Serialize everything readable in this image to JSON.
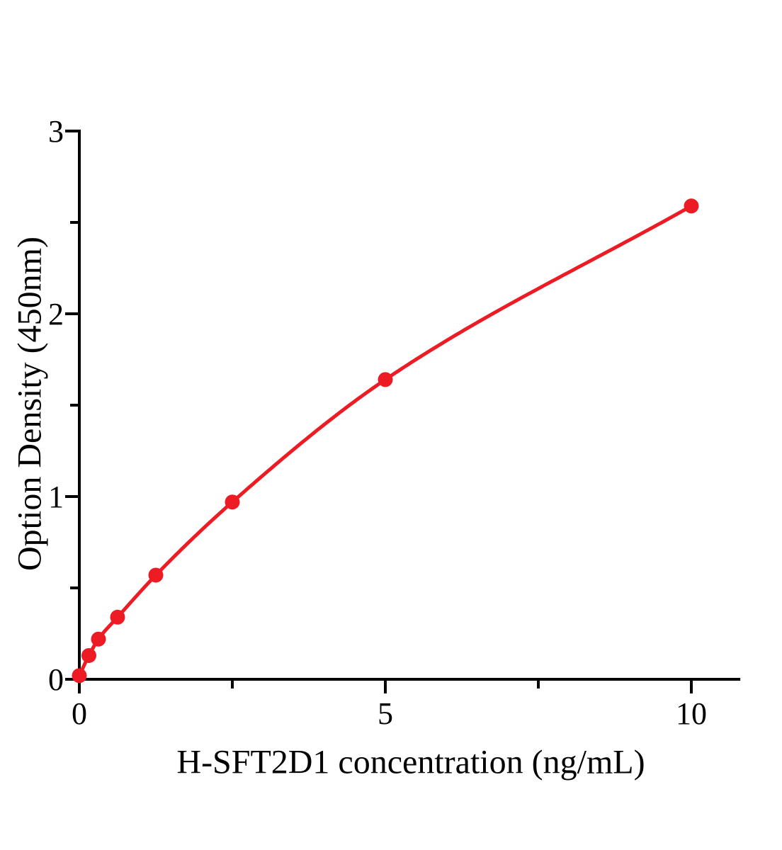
{
  "chart_data": {
    "type": "scatter",
    "title": "",
    "xlabel": "H-SFT2D1 concentration (ng/mL)",
    "ylabel": "Option Density (450nm)",
    "x": [
      0,
      0.156,
      0.3125,
      0.625,
      1.25,
      2.5,
      5,
      10
    ],
    "y": [
      0.02,
      0.13,
      0.22,
      0.34,
      0.57,
      0.97,
      1.64,
      2.59
    ],
    "xlim": [
      0,
      10.8
    ],
    "ylim": [
      0,
      3
    ],
    "x_major_ticks": [
      0,
      5,
      10
    ],
    "x_tick_labels": [
      "0",
      "5",
      "10"
    ],
    "x_minor_ticks": [
      2.5,
      7.5
    ],
    "y_major_ticks": [
      0,
      1,
      2,
      3
    ],
    "y_tick_labels": [
      "0",
      "1",
      "2",
      "3"
    ],
    "y_minor_ticks": [
      0.5,
      1.5,
      2.5
    ],
    "grid": false,
    "legend": "none",
    "colors": {
      "curve": "#ed1c24",
      "marker": "#ed1c24",
      "axis": "#000000",
      "background": "#ffffff"
    }
  }
}
